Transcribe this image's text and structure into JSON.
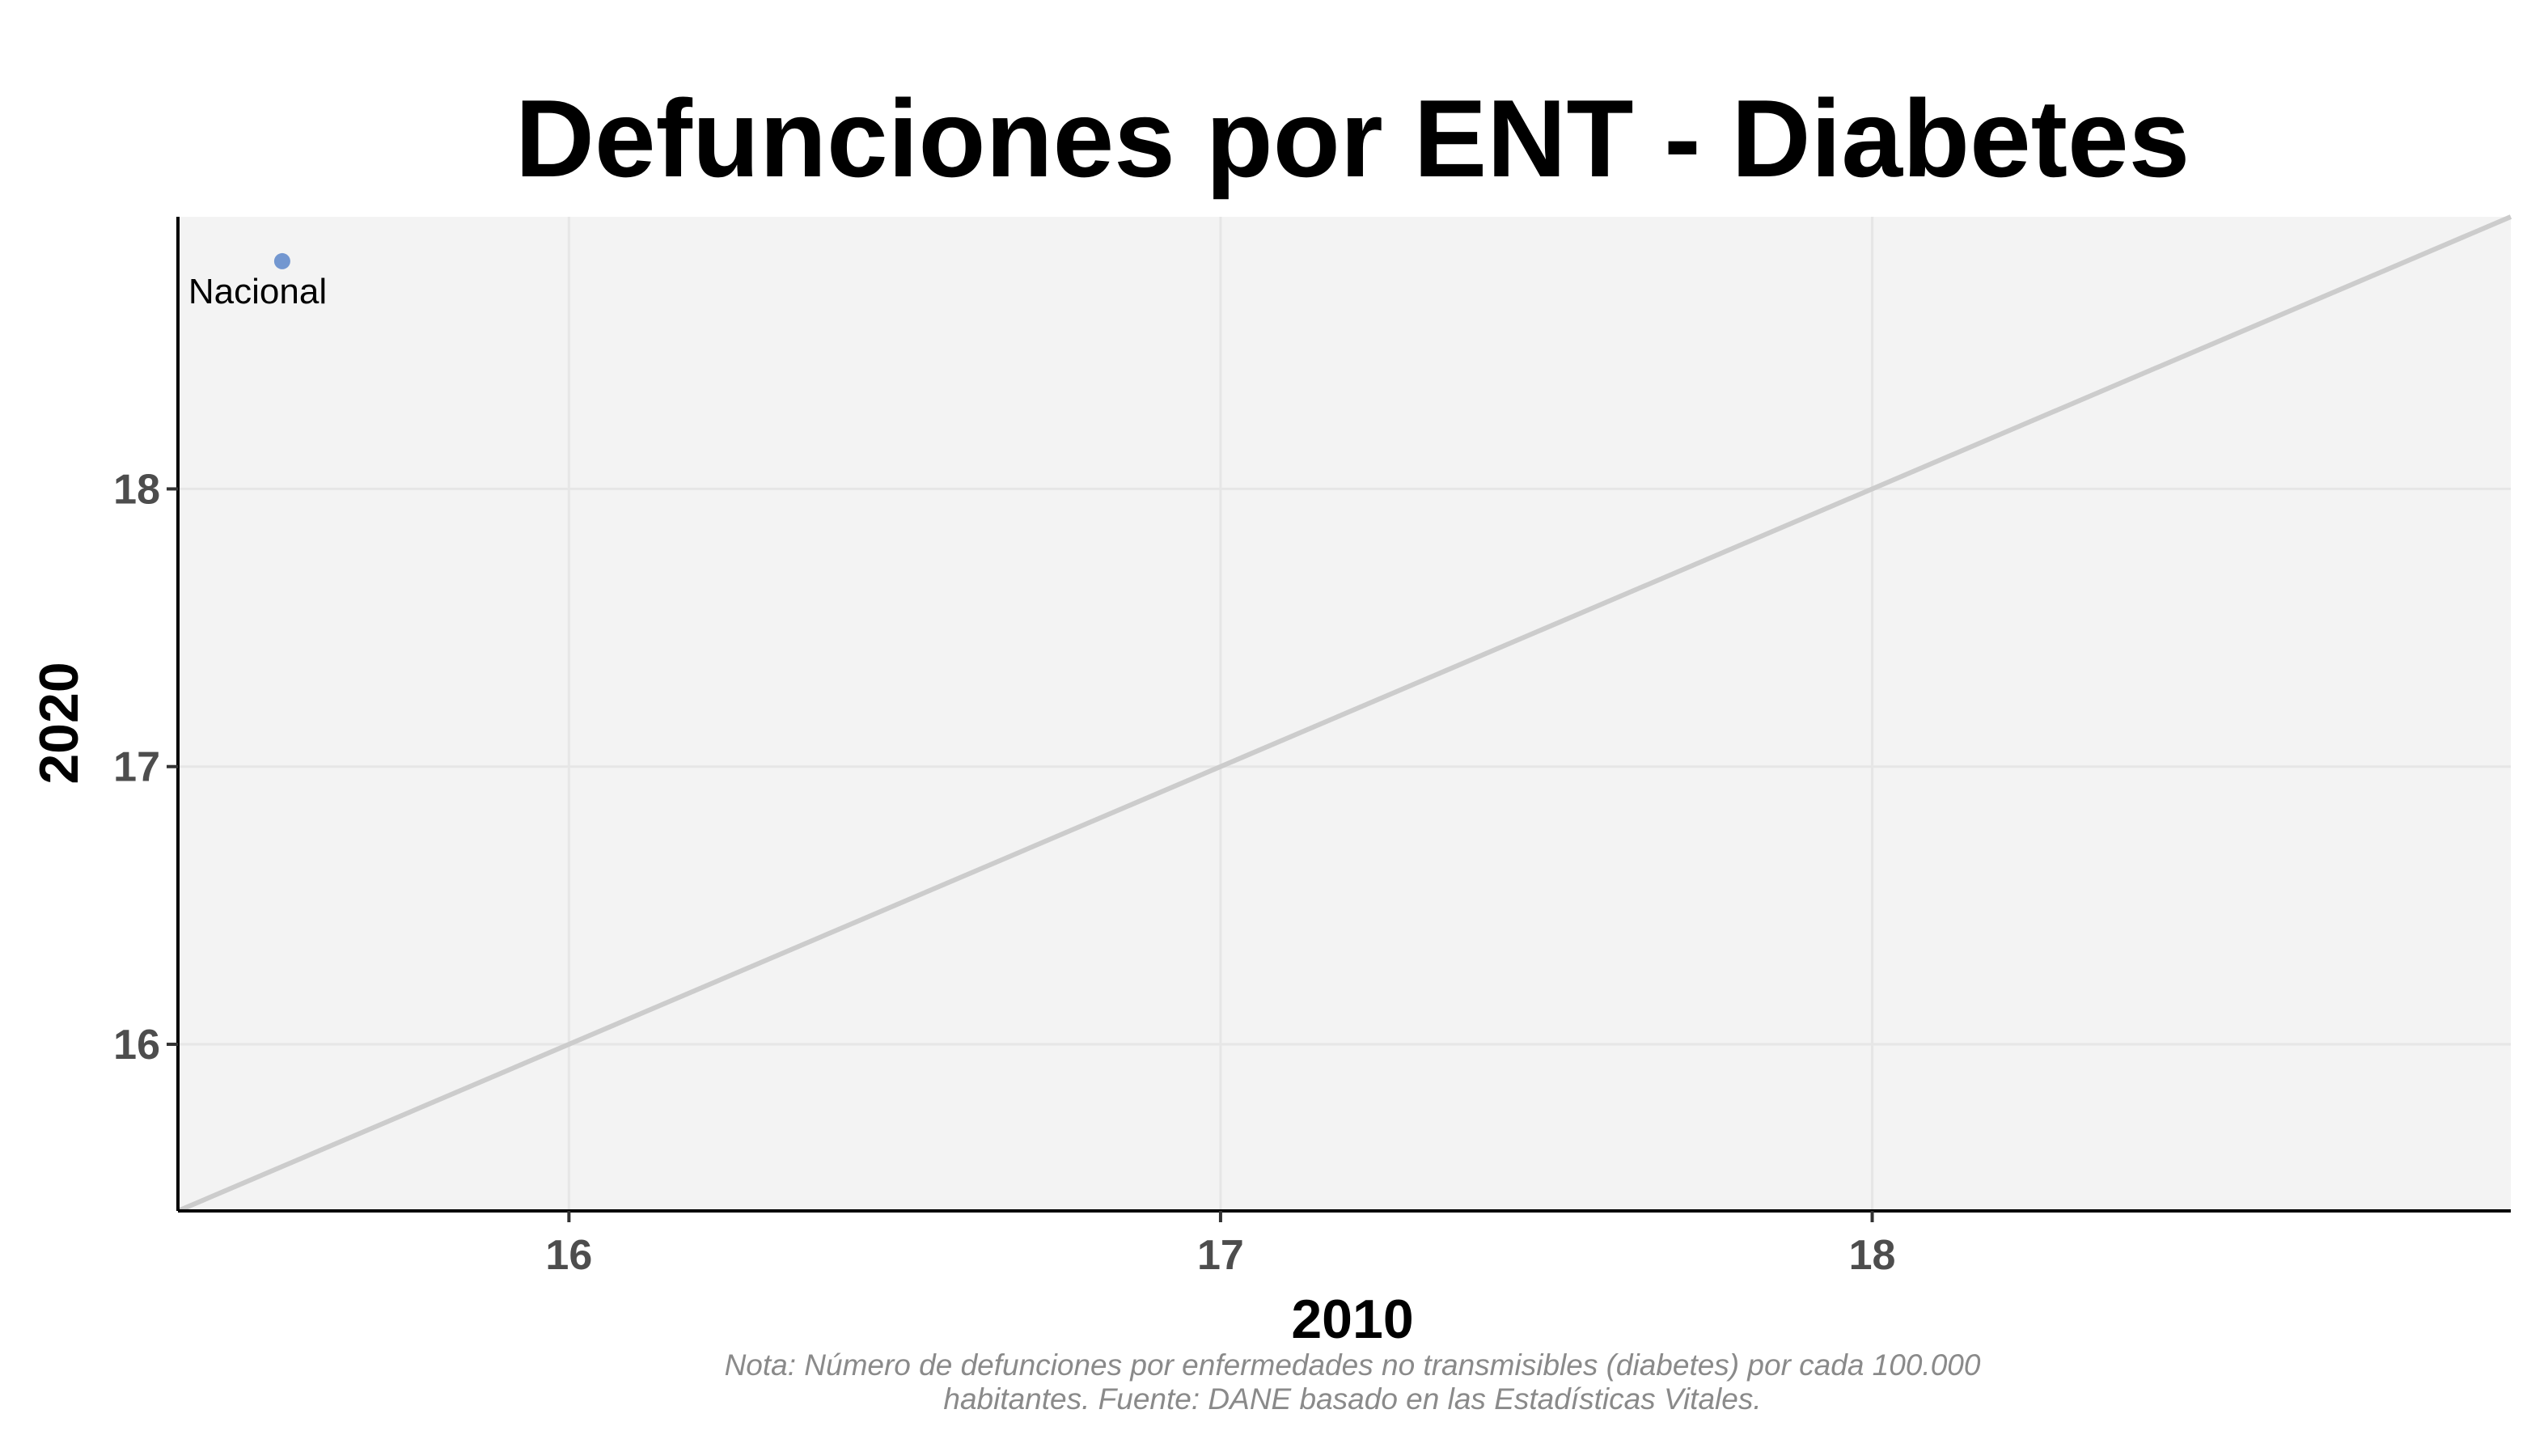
{
  "chart_data": {
    "type": "scatter",
    "title": "Defunciones por ENT - Diabetes",
    "xlabel": "2010",
    "ylabel": "2020",
    "xlim": [
      15.4,
      18.98
    ],
    "ylim": [
      15.4,
      18.98
    ],
    "xticks": [
      16,
      17,
      18
    ],
    "yticks": [
      16,
      17,
      18
    ],
    "xtick_labels": [
      "16",
      "17",
      "18"
    ],
    "ytick_labels": [
      "16",
      "17",
      "18"
    ],
    "grid": true,
    "reference_line": {
      "type": "identity",
      "color": "#cccccc"
    },
    "points": [
      {
        "x": 15.56,
        "y": 18.82,
        "label": "Nacional",
        "color": "#7397d0"
      }
    ],
    "caption_lines": [
      "Nota: Número de defunciones por enfermedades no transmisibles (diabetes) por cada 100.000",
      "habitantes. Fuente: DANE basado en las Estadísticas Vitales."
    ],
    "colors": {
      "panel_background": "#f3f3f3",
      "grid": "#e6e6e6",
      "axis": "#000000",
      "tick_text": "#4d4d4d",
      "caption_text": "#8a8a8a"
    }
  }
}
